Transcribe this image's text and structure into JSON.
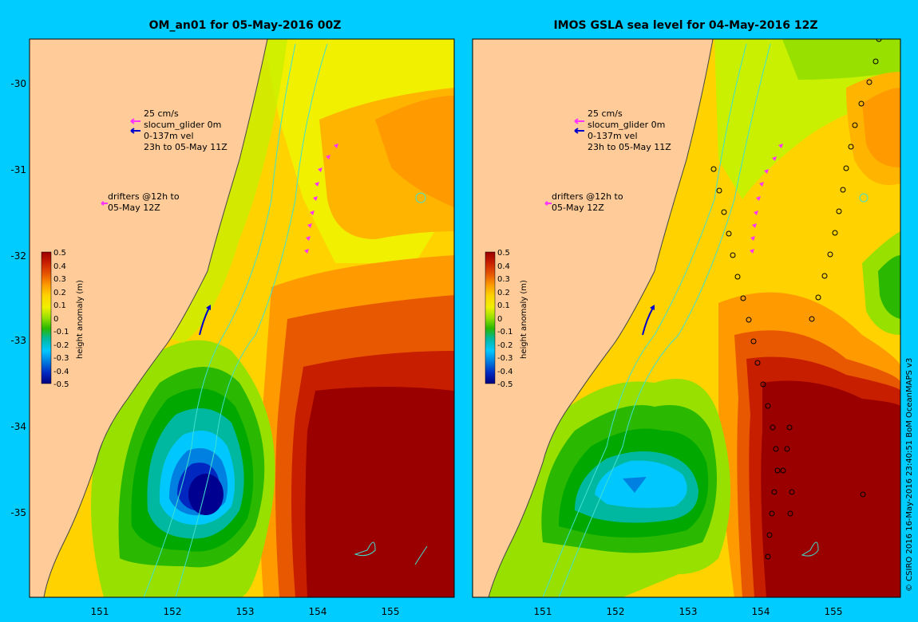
{
  "panels": [
    {
      "title": "OM_an01 for 05-May-2016 00Z",
      "legend": {
        "speed_label": "25 cm/s",
        "glider_label": "slocum_glider 0m",
        "vel_label_1": "0-137m vel",
        "vel_label_2": "23h to 05-May 11Z",
        "drifter_label_1": "drifters @12h to",
        "drifter_label_2": "05-May 12Z"
      }
    },
    {
      "title": "IMOS GSLA sea level  for 04-May-2016 12Z",
      "legend": {
        "speed_label": "25 cm/s",
        "glider_label": "slocum_glider 0m",
        "vel_label_1": "0-137m vel",
        "vel_label_2": "23h to 05-May 11Z",
        "drifter_label_1": "drifters @12h to",
        "drifter_label_2": "05-May 12Z"
      }
    }
  ],
  "colorbar": {
    "title": "height anomaly (m)",
    "ticks": [
      "0.5",
      "0.4",
      "0.3",
      "0.2",
      "0.1",
      "0",
      "-0.1",
      "-0.2",
      "-0.3",
      "-0.4",
      "-0.5"
    ],
    "colors": [
      "#9a0000",
      "#c81e00",
      "#e85800",
      "#ff9a00",
      "#ffd200",
      "#f0f000",
      "#98e000",
      "#2ab800",
      "#00a800",
      "#00b8a0",
      "#00c8ff",
      "#0080e0",
      "#0028c0",
      "#000080"
    ]
  },
  "axes": {
    "lat_ticks": [
      "-30",
      "-31",
      "-32",
      "-33",
      "-34",
      "-35"
    ],
    "lon_ticks": [
      "151",
      "152",
      "153",
      "154",
      "155"
    ]
  },
  "colors": {
    "frame_bg": "#00ccff",
    "land": "#ffcc99",
    "coast_line": "#444444",
    "isobath": "#40e0d0",
    "glider": "#0000cc",
    "drifter": "#ff33ff",
    "velocity": "#ff33ff"
  },
  "credit": "© CSIRO 2016  16-May-2016 23:40:51 BoM OceanMAPS v3"
}
